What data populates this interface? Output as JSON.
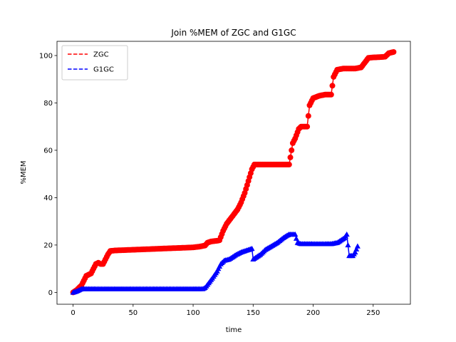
{
  "chart_data": {
    "type": "line",
    "title": "Join %MEM of ZGC and G1GC",
    "xlabel": "time",
    "ylabel": "%MEM",
    "xlim": [
      -13.4,
      281
    ],
    "ylim": [
      -5,
      106
    ],
    "xticks": [
      0,
      50,
      100,
      150,
      200,
      250
    ],
    "yticks": [
      0,
      20,
      40,
      60,
      80,
      100
    ],
    "grid": false,
    "legend": "upper-left",
    "series": [
      {
        "name": "ZGC",
        "color": "#ff0000",
        "marker": "circle",
        "legend_style": "dashed",
        "x": [
          0,
          3,
          5,
          7,
          9,
          11,
          13,
          15,
          17,
          19,
          21,
          23,
          25,
          27,
          29,
          31,
          35,
          40,
          50,
          60,
          70,
          80,
          90,
          100,
          105,
          110,
          112,
          115,
          120,
          122,
          125,
          128,
          131,
          134,
          137,
          140,
          143,
          146,
          149,
          151,
          155,
          160,
          170,
          180,
          183,
          185,
          188,
          190,
          195,
          197,
          200,
          205,
          210,
          215,
          217,
          220,
          225,
          230,
          235,
          240,
          243,
          246,
          250,
          255,
          260,
          263,
          267
        ],
        "y": [
          0,
          1,
          2,
          3,
          5,
          7,
          7.5,
          8,
          10,
          12,
          12.5,
          12,
          12,
          14,
          16,
          17.5,
          17.7,
          17.8,
          18,
          18.2,
          18.4,
          18.6,
          18.8,
          19,
          19.3,
          19.8,
          21,
          21.5,
          21.8,
          22,
          26,
          29,
          31,
          33,
          35,
          38,
          42,
          47,
          52,
          54,
          54,
          54,
          54,
          54,
          63,
          65,
          69,
          70,
          70,
          79,
          82,
          83,
          83.5,
          83.5,
          91,
          94,
          94.5,
          94.5,
          94.5,
          95,
          97,
          99,
          99.2,
          99.3,
          99.5,
          101,
          101.5
        ]
      },
      {
        "name": "G1GC",
        "color": "#0000ff",
        "marker": "triangle",
        "legend_style": "dashed",
        "x": [
          0,
          3,
          5,
          7,
          10,
          20,
          40,
          60,
          80,
          100,
          108,
          110,
          113,
          116,
          120,
          123,
          126,
          130,
          133,
          136,
          140,
          143,
          146,
          149,
          150,
          153,
          156,
          160,
          165,
          170,
          175,
          178,
          180,
          185,
          187,
          190,
          195,
          200,
          210,
          215,
          220,
          223,
          226,
          228,
          230,
          233,
          235,
          237
        ],
        "y": [
          0,
          0.5,
          1,
          1.5,
          1.5,
          1.5,
          1.5,
          1.5,
          1.5,
          1.5,
          1.5,
          2,
          4,
          6,
          9,
          12,
          13.5,
          14,
          15,
          16,
          17,
          17.5,
          18,
          18.5,
          14,
          15,
          16,
          18,
          19.5,
          21,
          23,
          24,
          24.5,
          24.5,
          21,
          20.5,
          20.5,
          20.5,
          20.5,
          20.5,
          21,
          22,
          23,
          24.5,
          15.5,
          15.5,
          17,
          19.5
        ]
      }
    ]
  }
}
